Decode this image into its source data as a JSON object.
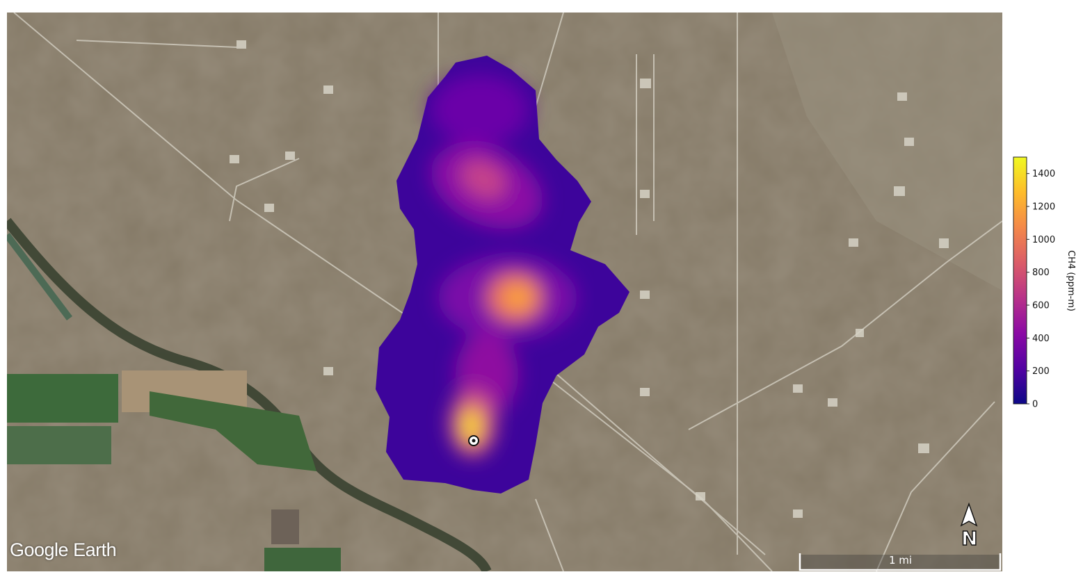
{
  "map": {
    "attribution": "Google Earth",
    "scale_bar_label": "1 mi",
    "north_label": "N",
    "source_marker": "circle-dot-icon"
  },
  "colorbar": {
    "label": "CH4 (ppm-m)",
    "colormap": "plasma",
    "range": [
      0,
      1500
    ],
    "ticks": [
      "0",
      "200",
      "400",
      "600",
      "800",
      "1000",
      "1200",
      "1400"
    ],
    "colors": [
      "#0d0887",
      "#5302a3",
      "#8b0aa5",
      "#b83289",
      "#db5c68",
      "#f48849",
      "#febc2a",
      "#f0f921"
    ]
  }
}
